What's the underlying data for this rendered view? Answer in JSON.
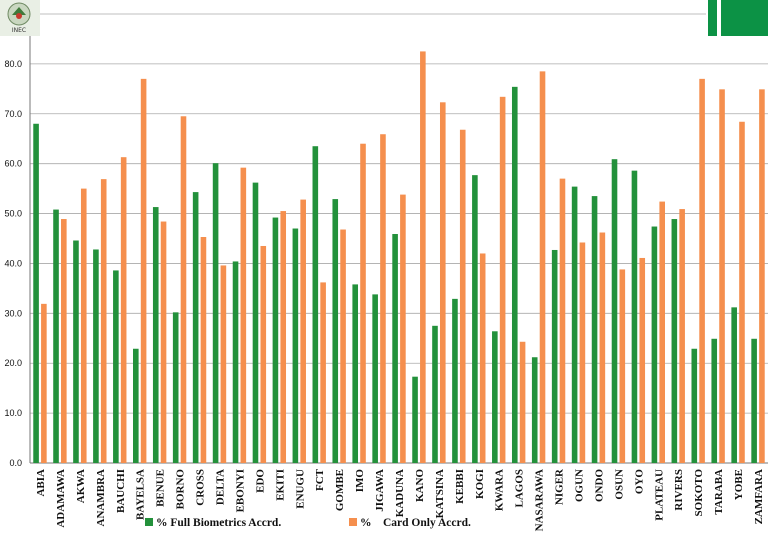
{
  "logo": {
    "text": "INEC"
  },
  "chart_data": {
    "type": "bar",
    "categories": [
      "ABIA",
      "ADAMAWA",
      "AKWA",
      "ANAMBRA",
      "BAUCHI",
      "BAYELSA",
      "BENUE",
      "BORNO",
      "CROSS",
      "DELTA",
      "EBONYI",
      "EDO",
      "EKITI",
      "ENUGU",
      "FCT",
      "GOMBE",
      "IMO",
      "JIGAWA",
      "KADUNA",
      "KANO",
      "KATSINA",
      "KEBBI",
      "KOGI",
      "KWARA",
      "LAGOS",
      "NASARAWA",
      "NIGER",
      "OGUN",
      "ONDO",
      "OSUN",
      "OYO",
      "PLATEAU",
      "RIVERS",
      "SOKOTO",
      "TARABA",
      "YOBE",
      "ZAMFARA"
    ],
    "series": [
      {
        "name": "% Full Biometrics Accrd.",
        "color": "#23913b",
        "values": [
          68.0,
          50.8,
          44.6,
          42.8,
          38.6,
          22.9,
          51.3,
          30.2,
          54.3,
          60.1,
          40.4,
          56.2,
          49.2,
          47.0,
          63.5,
          52.9,
          35.8,
          33.8,
          45.9,
          17.3,
          27.5,
          32.9,
          57.7,
          26.4,
          75.4,
          21.2,
          42.7,
          55.4,
          53.5,
          60.9,
          58.6,
          47.4,
          48.9,
          22.9,
          24.9,
          31.2,
          24.9
        ]
      },
      {
        "name": "%    Card Only Accrd.",
        "color": "#f58f4e",
        "values": [
          31.9,
          48.9,
          55.0,
          56.9,
          61.3,
          77.0,
          48.4,
          69.5,
          45.3,
          39.6,
          59.2,
          43.5,
          50.5,
          52.8,
          36.2,
          46.8,
          64.0,
          65.9,
          53.8,
          82.5,
          72.3,
          66.8,
          42.0,
          73.4,
          24.3,
          78.5,
          57.0,
          44.2,
          46.2,
          38.8,
          41.1,
          52.4,
          50.9,
          77.0,
          74.9,
          68.4,
          74.9
        ]
      }
    ],
    "yticks": [
      "0.0",
      "10.0",
      "20.0",
      "30.0",
      "40.0",
      "50.0",
      "60.0",
      "70.0",
      "80.0",
      "90.0"
    ],
    "ylim": [
      0,
      90
    ],
    "grid": true,
    "legend": "bottom",
    "title": "",
    "xlabel": "",
    "ylabel": ""
  }
}
